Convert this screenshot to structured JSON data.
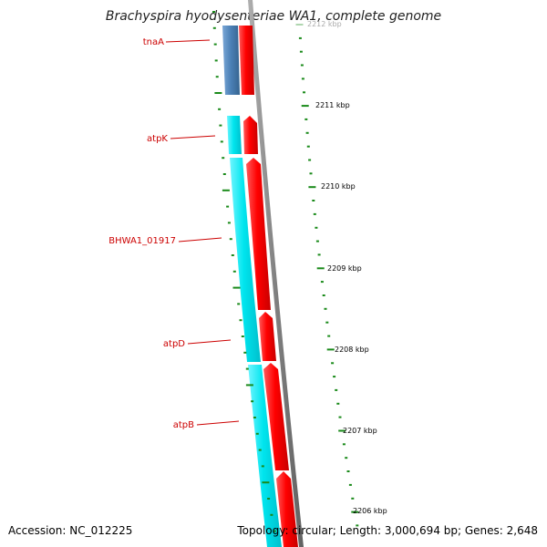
{
  "title": "Brachyspira hyodysenteriae WA1, complete genome",
  "accession": "Accession: NC_012225",
  "topology": "Topology: circular; Length: 3,000,694 bp; Genes: 2,648",
  "colors": {
    "forward_gene": "#ff0000",
    "reverse_gene_cyan": "#00e5ee",
    "reverse_gene_blue": "#4a7fb5",
    "backbone": "#808080",
    "tick": "#1a8a1a",
    "label": "#cc0000"
  },
  "gene_labels": [
    "tnaA",
    "atpK",
    "BHWA1_01917",
    "atpD",
    "atpB"
  ],
  "scale_labels": [
    "2212 kbp",
    "2211 kbp",
    "2210 kbp",
    "2209 kbp",
    "2208 kbp",
    "2207 kbp",
    "2206 kbp"
  ]
}
